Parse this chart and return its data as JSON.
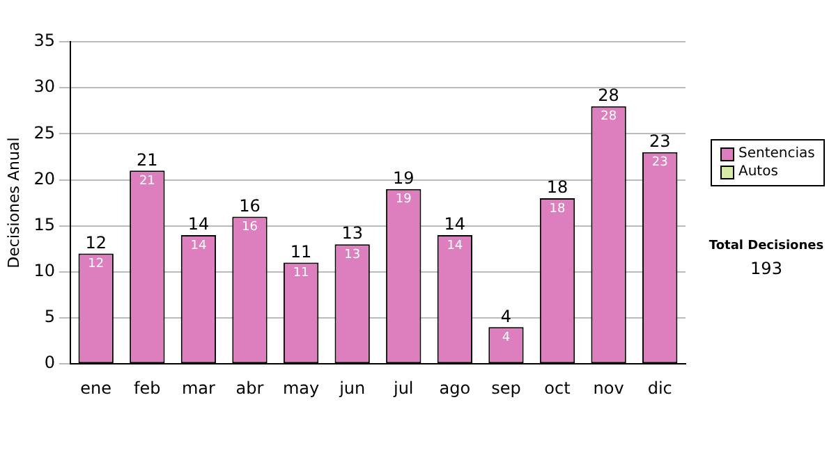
{
  "chart_data": {
    "type": "bar",
    "stacked": true,
    "ylabel": "Decisiones Anual",
    "categories": [
      "ene",
      "feb",
      "mar",
      "abr",
      "may",
      "jun",
      "jul",
      "ago",
      "sep",
      "oct",
      "nov",
      "dic"
    ],
    "series": [
      {
        "name": "Sentencias",
        "color": "#dd7fbe",
        "values": [
          12,
          21,
          14,
          16,
          11,
          13,
          19,
          14,
          4,
          18,
          28,
          23
        ],
        "value_labels": [
          "12",
          "21",
          "14",
          "16",
          "11",
          "13",
          "19",
          "14",
          "4",
          "18",
          "28",
          "23"
        ]
      },
      {
        "name": "Autos",
        "color": "#d8eaa8",
        "values": [
          0,
          0,
          0,
          0,
          0,
          0,
          0,
          0,
          0,
          0,
          0,
          0
        ]
      }
    ],
    "totals": [
      "12",
      "21",
      "14",
      "16",
      "11",
      "13",
      "19",
      "14",
      "4",
      "18",
      "28",
      "23"
    ],
    "ylim": [
      0,
      35
    ],
    "yticks": [
      0,
      5,
      10,
      15,
      20,
      25,
      30,
      35
    ],
    "grid": "y",
    "legend": "right",
    "annotations": [
      "Total Decisiones",
      "193"
    ]
  }
}
